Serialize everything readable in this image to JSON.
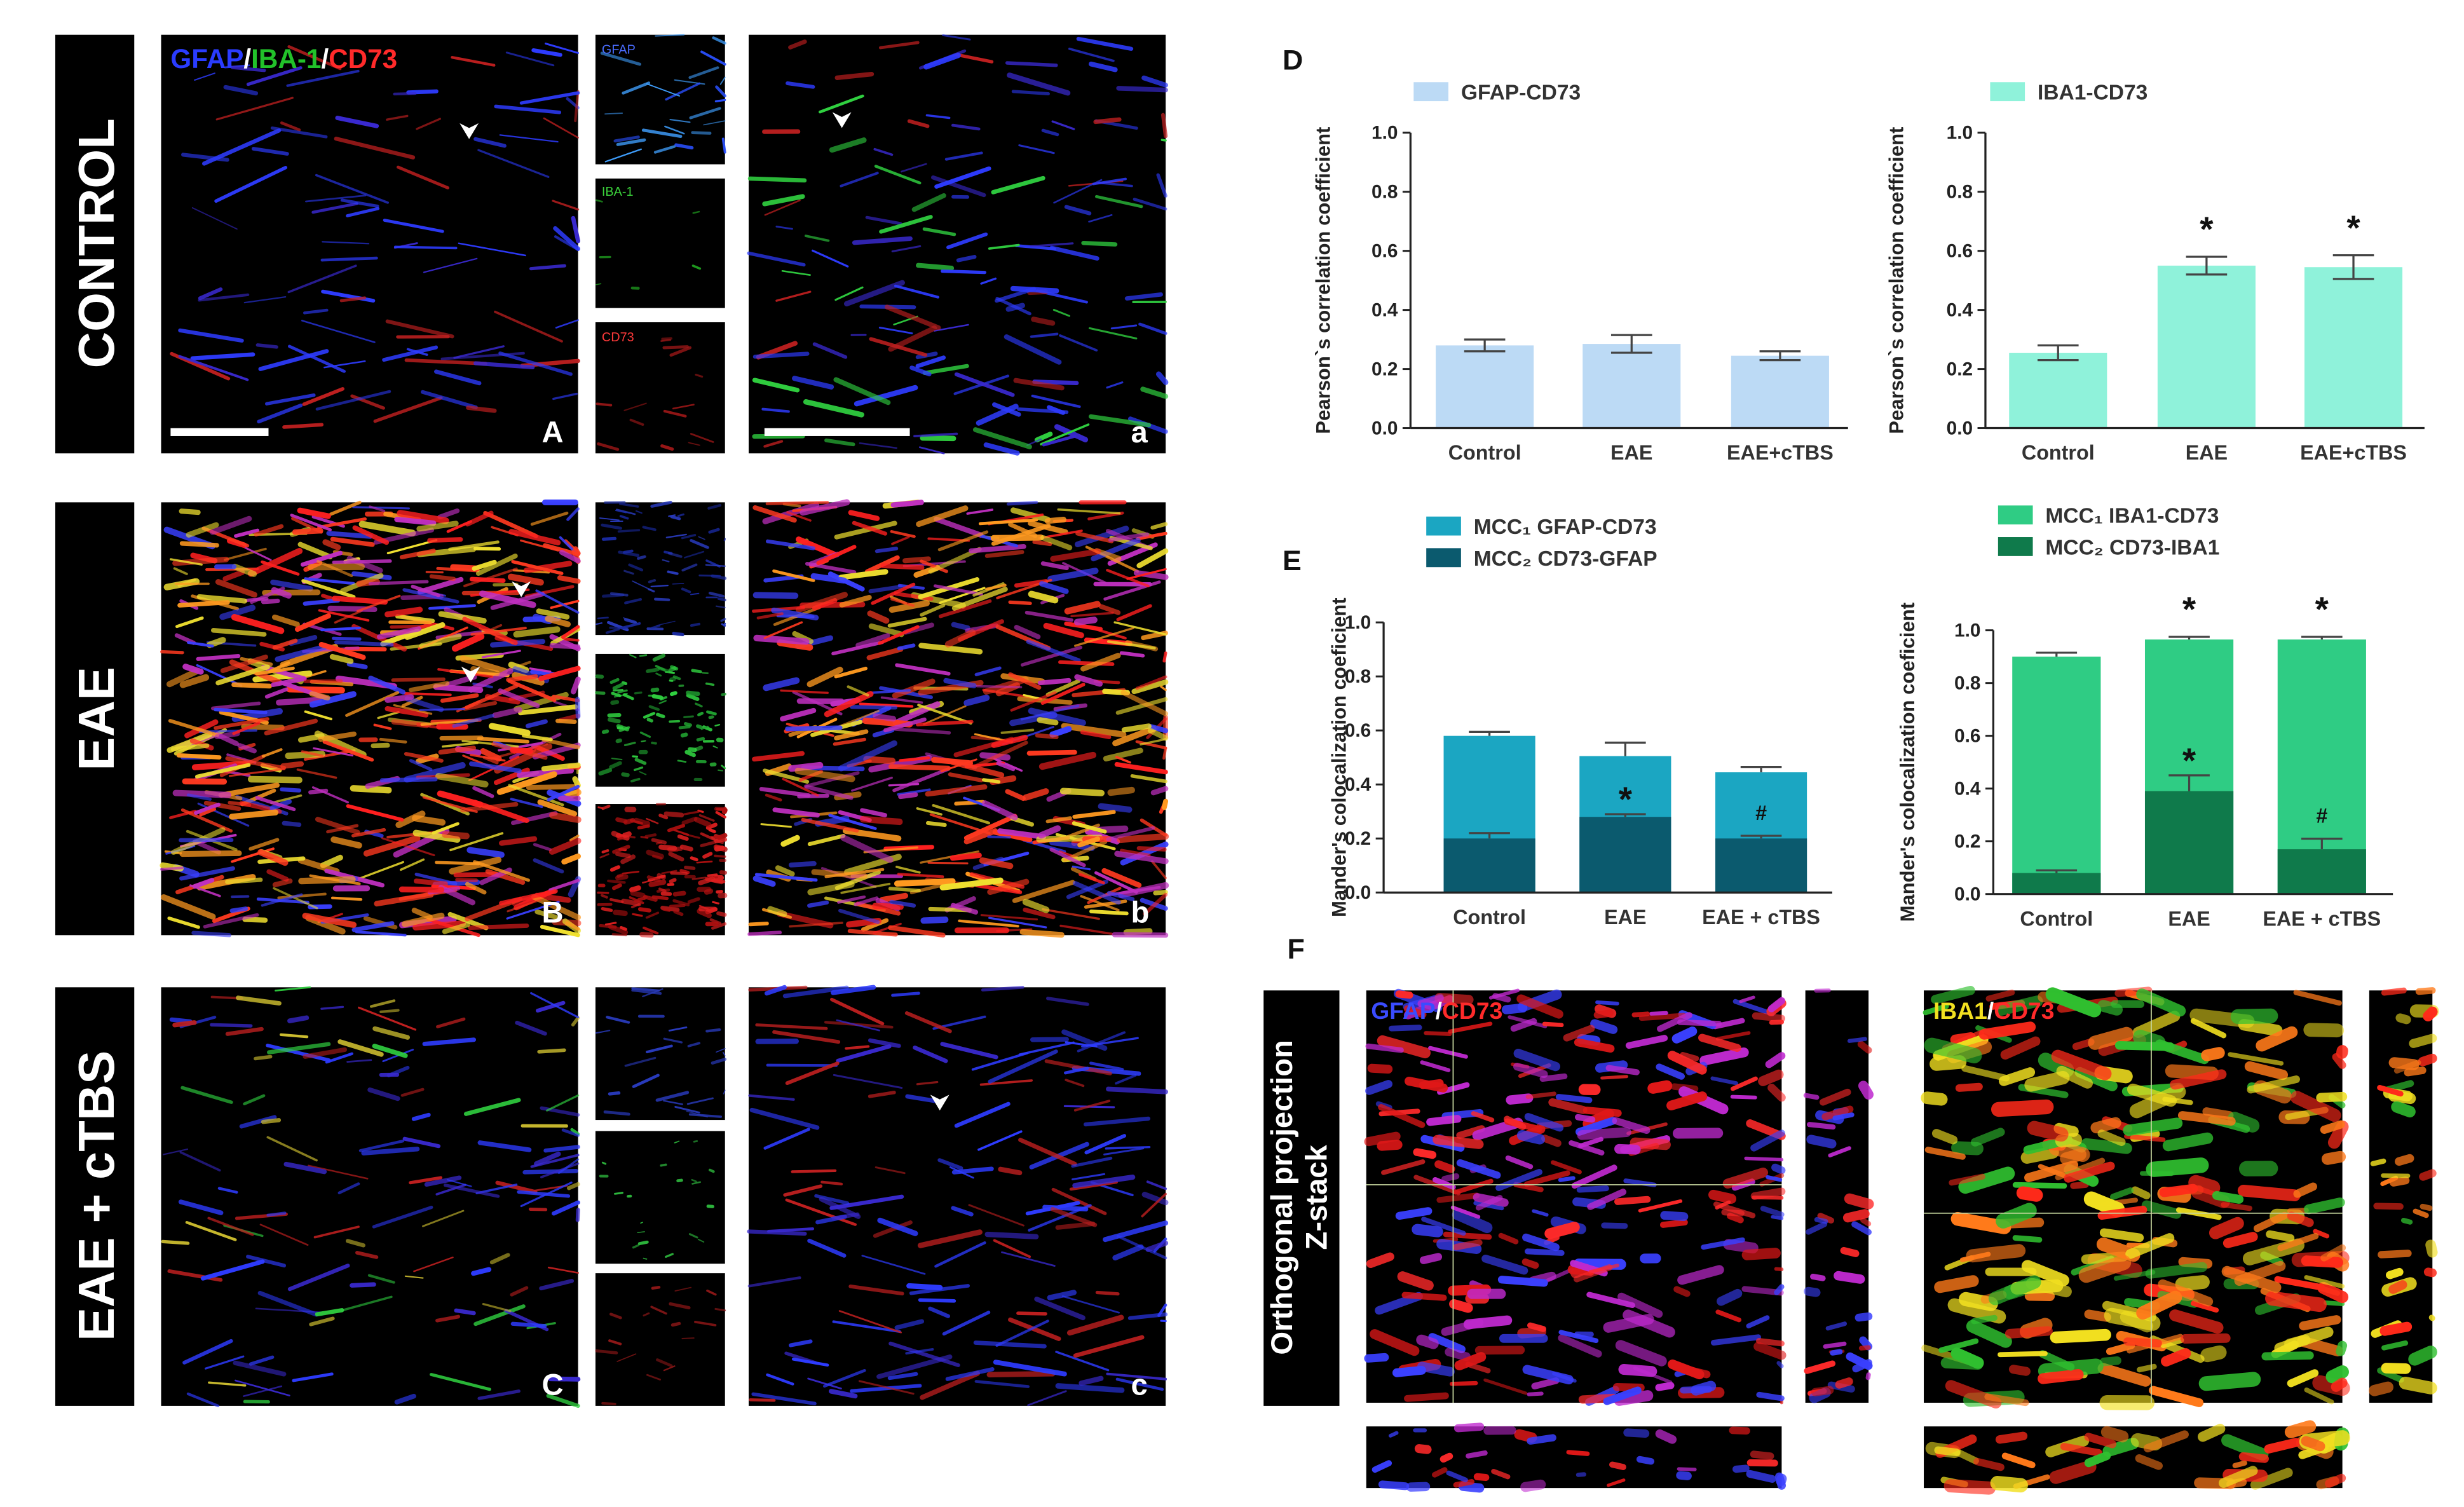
{
  "figure": {
    "rows": [
      "CONTROL",
      "EAE",
      "EAE + cTBS"
    ],
    "panel_letters": [
      "A",
      "a",
      "B",
      "b",
      "C",
      "c"
    ],
    "section_letters": [
      "D",
      "E",
      "F"
    ],
    "merge_label": [
      "GFAP",
      "/",
      "IBA-1",
      "/",
      "CD73"
    ],
    "inset_labels": [
      "GFAP",
      "IBA-1",
      "CD73"
    ],
    "orthogonal_label": [
      "Orthogonal projection",
      "Z-stack"
    ],
    "f_labels": [
      [
        "GFAP",
        "/",
        "CD73"
      ],
      [
        "IBA1",
        "/",
        "CD73"
      ]
    ]
  },
  "chart_data": [
    {
      "type": "bar",
      "y_label": "Pearson`s correlation coefficient",
      "categories": [
        "Control",
        "EAE",
        "EAE+cTBS"
      ],
      "series": [
        {
          "name": "GFAP-CD73",
          "color": "#bcdaf5",
          "values": [
            0.28,
            0.285,
            0.245
          ],
          "errors": [
            0.02,
            0.03,
            0.015
          ]
        }
      ],
      "ylim": [
        0,
        1
      ],
      "yticks": [
        {
          "value": 0,
          "label": "0.0"
        },
        0.2,
        0.4,
        0.6,
        0.8,
        {
          "value": 1,
          "label": "1.0"
        }
      ],
      "annotations": []
    },
    {
      "type": "bar",
      "y_label": "Pearson`s correlation coefficient",
      "categories": [
        "Control",
        "EAE",
        "EAE+cTBS"
      ],
      "series": [
        {
          "name": "IBA1-CD73",
          "color": "#8ff2da",
          "values": [
            0.255,
            0.55,
            0.545
          ],
          "errors": [
            0.025,
            0.03,
            0.04
          ]
        }
      ],
      "ylim": [
        0,
        1
      ],
      "yticks": [
        {
          "value": 0,
          "label": "0.0"
        },
        0.2,
        0.4,
        0.6,
        0.8,
        {
          "value": 1,
          "label": "1.0"
        }
      ],
      "annotations": [
        {
          "text": "*",
          "category": "EAE",
          "series": "IBA1-CD73"
        },
        {
          "text": "*",
          "category": "EAE+cTBS",
          "series": "IBA1-CD73"
        }
      ]
    },
    {
      "type": "overlaid_bar",
      "y_label": "Mander's colocalization coeficient",
      "categories": [
        "Control",
        "EAE",
        "EAE + cTBS"
      ],
      "series": [
        {
          "name": "MCC₁ GFAP-CD73",
          "color": "#1ba6c2",
          "values": [
            0.58,
            0.505,
            0.445
          ],
          "errors": [
            0.015,
            0.05,
            0.02
          ]
        },
        {
          "name": "MCC₂ CD73-GFAP",
          "color": "#0b5a6e",
          "values": [
            0.2,
            0.28,
            0.2
          ],
          "errors": [
            0.02,
            0.01,
            0.01
          ]
        }
      ],
      "ylim": [
        0,
        1
      ],
      "yticks": [
        {
          "value": 0,
          "label": "0.0"
        },
        0.2,
        0.4,
        0.6,
        0.8,
        {
          "value": 1,
          "label": "1.0"
        }
      ],
      "annotations": [
        {
          "text": "*",
          "category": "EAE",
          "series": "MCC₂ CD73-GFAP"
        },
        {
          "text": "#",
          "category": "EAE + cTBS",
          "series": "MCC₂ CD73-GFAP"
        }
      ]
    },
    {
      "type": "overlaid_bar",
      "y_label": "Mander's colocalization coeficient",
      "categories": [
        "Control",
        "EAE",
        "EAE + cTBS"
      ],
      "series": [
        {
          "name": "MCC₁ IBA1-CD73",
          "color": "#2fcc84",
          "values": [
            0.9,
            0.965,
            0.965
          ],
          "errors": [
            0.015,
            0.01,
            0.01
          ]
        },
        {
          "name": "MCC₂ CD73-IBA1",
          "color": "#0f7a4b",
          "values": [
            0.08,
            0.39,
            0.17
          ],
          "errors": [
            0.01,
            0.06,
            0.04
          ]
        }
      ],
      "ylim": [
        0,
        1
      ],
      "yticks": [
        {
          "value": 0,
          "label": "0.0"
        },
        0.2,
        0.4,
        0.6,
        0.8,
        {
          "value": 1,
          "label": "1.0"
        }
      ],
      "annotations": [
        {
          "text": "*",
          "category": "EAE",
          "series": "MCC₁ IBA1-CD73"
        },
        {
          "text": "*",
          "category": "EAE + cTBS",
          "series": "MCC₁ IBA1-CD73"
        },
        {
          "text": "*",
          "category": "EAE",
          "series": "MCC₂ CD73-IBA1"
        },
        {
          "text": "#",
          "category": "EAE + cTBS",
          "series": "MCC₂ CD73-IBA1"
        }
      ]
    }
  ]
}
